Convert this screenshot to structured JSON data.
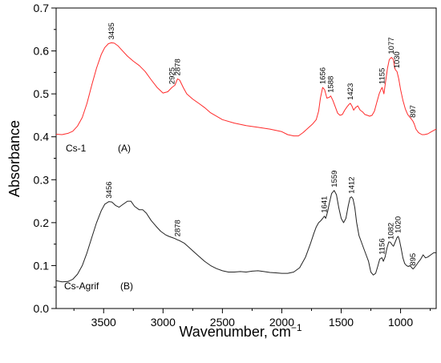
{
  "chart_data": {
    "type": "line",
    "xlabel": "Wavenumber, cm",
    "xlabel_superscript": "−1",
    "ylabel": "Absorbance",
    "xlim": [
      3900,
      700
    ],
    "ylim": [
      0.0,
      0.7
    ],
    "x_reversed": true,
    "grid": false,
    "x_ticks": [
      3500,
      3000,
      2500,
      2000,
      1500,
      1000
    ],
    "y_ticks": [
      "0.0",
      "0.1",
      "0.2",
      "0.3",
      "0.4",
      "0.5",
      "0.6",
      "0.7"
    ],
    "series": [
      {
        "name": "Cs-1",
        "tag": "(A)",
        "color": "#ff2a2a",
        "points": [
          [
            3900,
            0.406
          ],
          [
            3850,
            0.405
          ],
          [
            3800,
            0.408
          ],
          [
            3760,
            0.413
          ],
          [
            3720,
            0.425
          ],
          [
            3680,
            0.445
          ],
          [
            3640,
            0.478
          ],
          [
            3600,
            0.52
          ],
          [
            3560,
            0.56
          ],
          [
            3520,
            0.592
          ],
          [
            3490,
            0.608
          ],
          [
            3460,
            0.617
          ],
          [
            3435,
            0.619
          ],
          [
            3410,
            0.618
          ],
          [
            3380,
            0.612
          ],
          [
            3340,
            0.6
          ],
          [
            3300,
            0.588
          ],
          [
            3250,
            0.576
          ],
          [
            3200,
            0.566
          ],
          [
            3150,
            0.552
          ],
          [
            3100,
            0.533
          ],
          [
            3050,
            0.515
          ],
          [
            3000,
            0.502
          ],
          [
            2960,
            0.505
          ],
          [
            2925,
            0.515
          ],
          [
            2900,
            0.52
          ],
          [
            2878,
            0.535
          ],
          [
            2860,
            0.532
          ],
          [
            2830,
            0.515
          ],
          [
            2800,
            0.5
          ],
          [
            2750,
            0.488
          ],
          [
            2700,
            0.478
          ],
          [
            2650,
            0.468
          ],
          [
            2600,
            0.456
          ],
          [
            2500,
            0.44
          ],
          [
            2400,
            0.432
          ],
          [
            2300,
            0.426
          ],
          [
            2200,
            0.422
          ],
          [
            2100,
            0.418
          ],
          [
            2000,
            0.412
          ],
          [
            1950,
            0.405
          ],
          [
            1900,
            0.402
          ],
          [
            1860,
            0.402
          ],
          [
            1820,
            0.41
          ],
          [
            1780,
            0.42
          ],
          [
            1740,
            0.43
          ],
          [
            1710,
            0.44
          ],
          [
            1690,
            0.46
          ],
          [
            1675,
            0.49
          ],
          [
            1656,
            0.515
          ],
          [
            1640,
            0.51
          ],
          [
            1620,
            0.49
          ],
          [
            1600,
            0.492
          ],
          [
            1588,
            0.495
          ],
          [
            1570,
            0.485
          ],
          [
            1550,
            0.47
          ],
          [
            1530,
            0.455
          ],
          [
            1510,
            0.45
          ],
          [
            1490,
            0.452
          ],
          [
            1470,
            0.462
          ],
          [
            1450,
            0.47
          ],
          [
            1435,
            0.475
          ],
          [
            1423,
            0.478
          ],
          [
            1410,
            0.472
          ],
          [
            1395,
            0.462
          ],
          [
            1380,
            0.468
          ],
          [
            1360,
            0.472
          ],
          [
            1340,
            0.462
          ],
          [
            1320,
            0.458
          ],
          [
            1300,
            0.452
          ],
          [
            1280,
            0.45
          ],
          [
            1260,
            0.448
          ],
          [
            1240,
            0.45
          ],
          [
            1220,
            0.46
          ],
          [
            1200,
            0.48
          ],
          [
            1180,
            0.5
          ],
          [
            1165,
            0.51
          ],
          [
            1155,
            0.515
          ],
          [
            1140,
            0.5
          ],
          [
            1125,
            0.53
          ],
          [
            1110,
            0.56
          ],
          [
            1095,
            0.58
          ],
          [
            1077,
            0.585
          ],
          [
            1060,
            0.58
          ],
          [
            1050,
            0.56
          ],
          [
            1040,
            0.555
          ],
          [
            1030,
            0.552
          ],
          [
            1015,
            0.535
          ],
          [
            1000,
            0.51
          ],
          [
            980,
            0.485
          ],
          [
            960,
            0.465
          ],
          [
            940,
            0.452
          ],
          [
            920,
            0.445
          ],
          [
            905,
            0.44
          ],
          [
            897,
            0.437
          ],
          [
            885,
            0.43
          ],
          [
            870,
            0.418
          ],
          [
            850,
            0.41
          ],
          [
            820,
            0.405
          ],
          [
            800,
            0.405
          ],
          [
            770,
            0.407
          ],
          [
            740,
            0.412
          ],
          [
            700,
            0.418
          ]
        ]
      },
      {
        "name": "Cs-Agrif",
        "tag": "(B)",
        "color": "#222222",
        "points": [
          [
            3900,
            0.065
          ],
          [
            3850,
            0.062
          ],
          [
            3800,
            0.063
          ],
          [
            3760,
            0.068
          ],
          [
            3720,
            0.08
          ],
          [
            3680,
            0.1
          ],
          [
            3640,
            0.13
          ],
          [
            3600,
            0.165
          ],
          [
            3560,
            0.2
          ],
          [
            3520,
            0.228
          ],
          [
            3490,
            0.243
          ],
          [
            3456,
            0.249
          ],
          [
            3430,
            0.248
          ],
          [
            3400,
            0.24
          ],
          [
            3370,
            0.236
          ],
          [
            3340,
            0.242
          ],
          [
            3300,
            0.25
          ],
          [
            3270,
            0.25
          ],
          [
            3240,
            0.238
          ],
          [
            3200,
            0.23
          ],
          [
            3170,
            0.23
          ],
          [
            3140,
            0.222
          ],
          [
            3100,
            0.205
          ],
          [
            3060,
            0.192
          ],
          [
            3020,
            0.18
          ],
          [
            2980,
            0.172
          ],
          [
            2950,
            0.168
          ],
          [
            2920,
            0.165
          ],
          [
            2900,
            0.163
          ],
          [
            2878,
            0.16
          ],
          [
            2860,
            0.158
          ],
          [
            2820,
            0.152
          ],
          [
            2780,
            0.142
          ],
          [
            2740,
            0.132
          ],
          [
            2700,
            0.122
          ],
          [
            2650,
            0.11
          ],
          [
            2600,
            0.1
          ],
          [
            2550,
            0.093
          ],
          [
            2500,
            0.088
          ],
          [
            2450,
            0.085
          ],
          [
            2400,
            0.085
          ],
          [
            2350,
            0.086
          ],
          [
            2300,
            0.085
          ],
          [
            2250,
            0.087
          ],
          [
            2200,
            0.088
          ],
          [
            2150,
            0.086
          ],
          [
            2100,
            0.084
          ],
          [
            2050,
            0.083
          ],
          [
            2000,
            0.082
          ],
          [
            1950,
            0.082
          ],
          [
            1900,
            0.085
          ],
          [
            1850,
            0.095
          ],
          [
            1800,
            0.12
          ],
          [
            1760,
            0.15
          ],
          [
            1730,
            0.175
          ],
          [
            1710,
            0.19
          ],
          [
            1690,
            0.2
          ],
          [
            1670,
            0.205
          ],
          [
            1655,
            0.21
          ],
          [
            1641,
            0.215
          ],
          [
            1630,
            0.21
          ],
          [
            1615,
            0.225
          ],
          [
            1600,
            0.245
          ],
          [
            1580,
            0.268
          ],
          [
            1559,
            0.275
          ],
          [
            1540,
            0.265
          ],
          [
            1520,
            0.235
          ],
          [
            1500,
            0.21
          ],
          [
            1480,
            0.2
          ],
          [
            1460,
            0.21
          ],
          [
            1440,
            0.24
          ],
          [
            1425,
            0.258
          ],
          [
            1412,
            0.26
          ],
          [
            1400,
            0.255
          ],
          [
            1385,
            0.235
          ],
          [
            1370,
            0.2
          ],
          [
            1350,
            0.17
          ],
          [
            1330,
            0.155
          ],
          [
            1310,
            0.14
          ],
          [
            1290,
            0.125
          ],
          [
            1270,
            0.11
          ],
          [
            1250,
            0.085
          ],
          [
            1230,
            0.078
          ],
          [
            1210,
            0.082
          ],
          [
            1190,
            0.1
          ],
          [
            1175,
            0.115
          ],
          [
            1160,
            0.118
          ],
          [
            1156,
            0.118
          ],
          [
            1145,
            0.11
          ],
          [
            1130,
            0.12
          ],
          [
            1115,
            0.14
          ],
          [
            1100,
            0.155
          ],
          [
            1090,
            0.155
          ],
          [
            1082,
            0.153
          ],
          [
            1070,
            0.148
          ],
          [
            1060,
            0.145
          ],
          [
            1045,
            0.155
          ],
          [
            1030,
            0.165
          ],
          [
            1020,
            0.168
          ],
          [
            1010,
            0.16
          ],
          [
            995,
            0.14
          ],
          [
            980,
            0.118
          ],
          [
            965,
            0.105
          ],
          [
            950,
            0.1
          ],
          [
            935,
            0.098
          ],
          [
            920,
            0.1
          ],
          [
            905,
            0.095
          ],
          [
            895,
            0.092
          ],
          [
            885,
            0.095
          ],
          [
            870,
            0.1
          ],
          [
            850,
            0.108
          ],
          [
            830,
            0.115
          ],
          [
            810,
            0.125
          ],
          [
            790,
            0.118
          ],
          [
            770,
            0.12
          ],
          [
            745,
            0.125
          ],
          [
            720,
            0.13
          ],
          [
            700,
            0.13
          ]
        ]
      }
    ],
    "peak_labels": [
      {
        "text": "3435",
        "x": 3435,
        "y": 0.619,
        "series": 0
      },
      {
        "text": "2925",
        "x": 2925,
        "y": 0.515,
        "series": 0
      },
      {
        "text": "2878",
        "x": 2878,
        "y": 0.535,
        "series": 0
      },
      {
        "text": "1656",
        "x": 1656,
        "y": 0.515,
        "series": 0
      },
      {
        "text": "1588",
        "x": 1588,
        "y": 0.495,
        "series": 0
      },
      {
        "text": "1423",
        "x": 1423,
        "y": 0.478,
        "series": 0
      },
      {
        "text": "1155",
        "x": 1155,
        "y": 0.515,
        "series": 0
      },
      {
        "text": "1077",
        "x": 1077,
        "y": 0.585,
        "series": 0
      },
      {
        "text": "1030",
        "x": 1030,
        "y": 0.552,
        "series": 0
      },
      {
        "text": "897",
        "x": 897,
        "y": 0.437,
        "series": 0
      },
      {
        "text": "3456",
        "x": 3456,
        "y": 0.249,
        "series": 1
      },
      {
        "text": "2878",
        "x": 2878,
        "y": 0.16,
        "series": 1
      },
      {
        "text": "1641",
        "x": 1641,
        "y": 0.215,
        "series": 1
      },
      {
        "text": "1559",
        "x": 1559,
        "y": 0.275,
        "series": 1
      },
      {
        "text": "1412",
        "x": 1412,
        "y": 0.26,
        "series": 1
      },
      {
        "text": "1156",
        "x": 1156,
        "y": 0.118,
        "series": 1
      },
      {
        "text": "1082",
        "x": 1082,
        "y": 0.153,
        "series": 1
      },
      {
        "text": "1020",
        "x": 1020,
        "y": 0.168,
        "series": 1
      },
      {
        "text": "895",
        "x": 895,
        "y": 0.092,
        "series": 1
      }
    ]
  }
}
